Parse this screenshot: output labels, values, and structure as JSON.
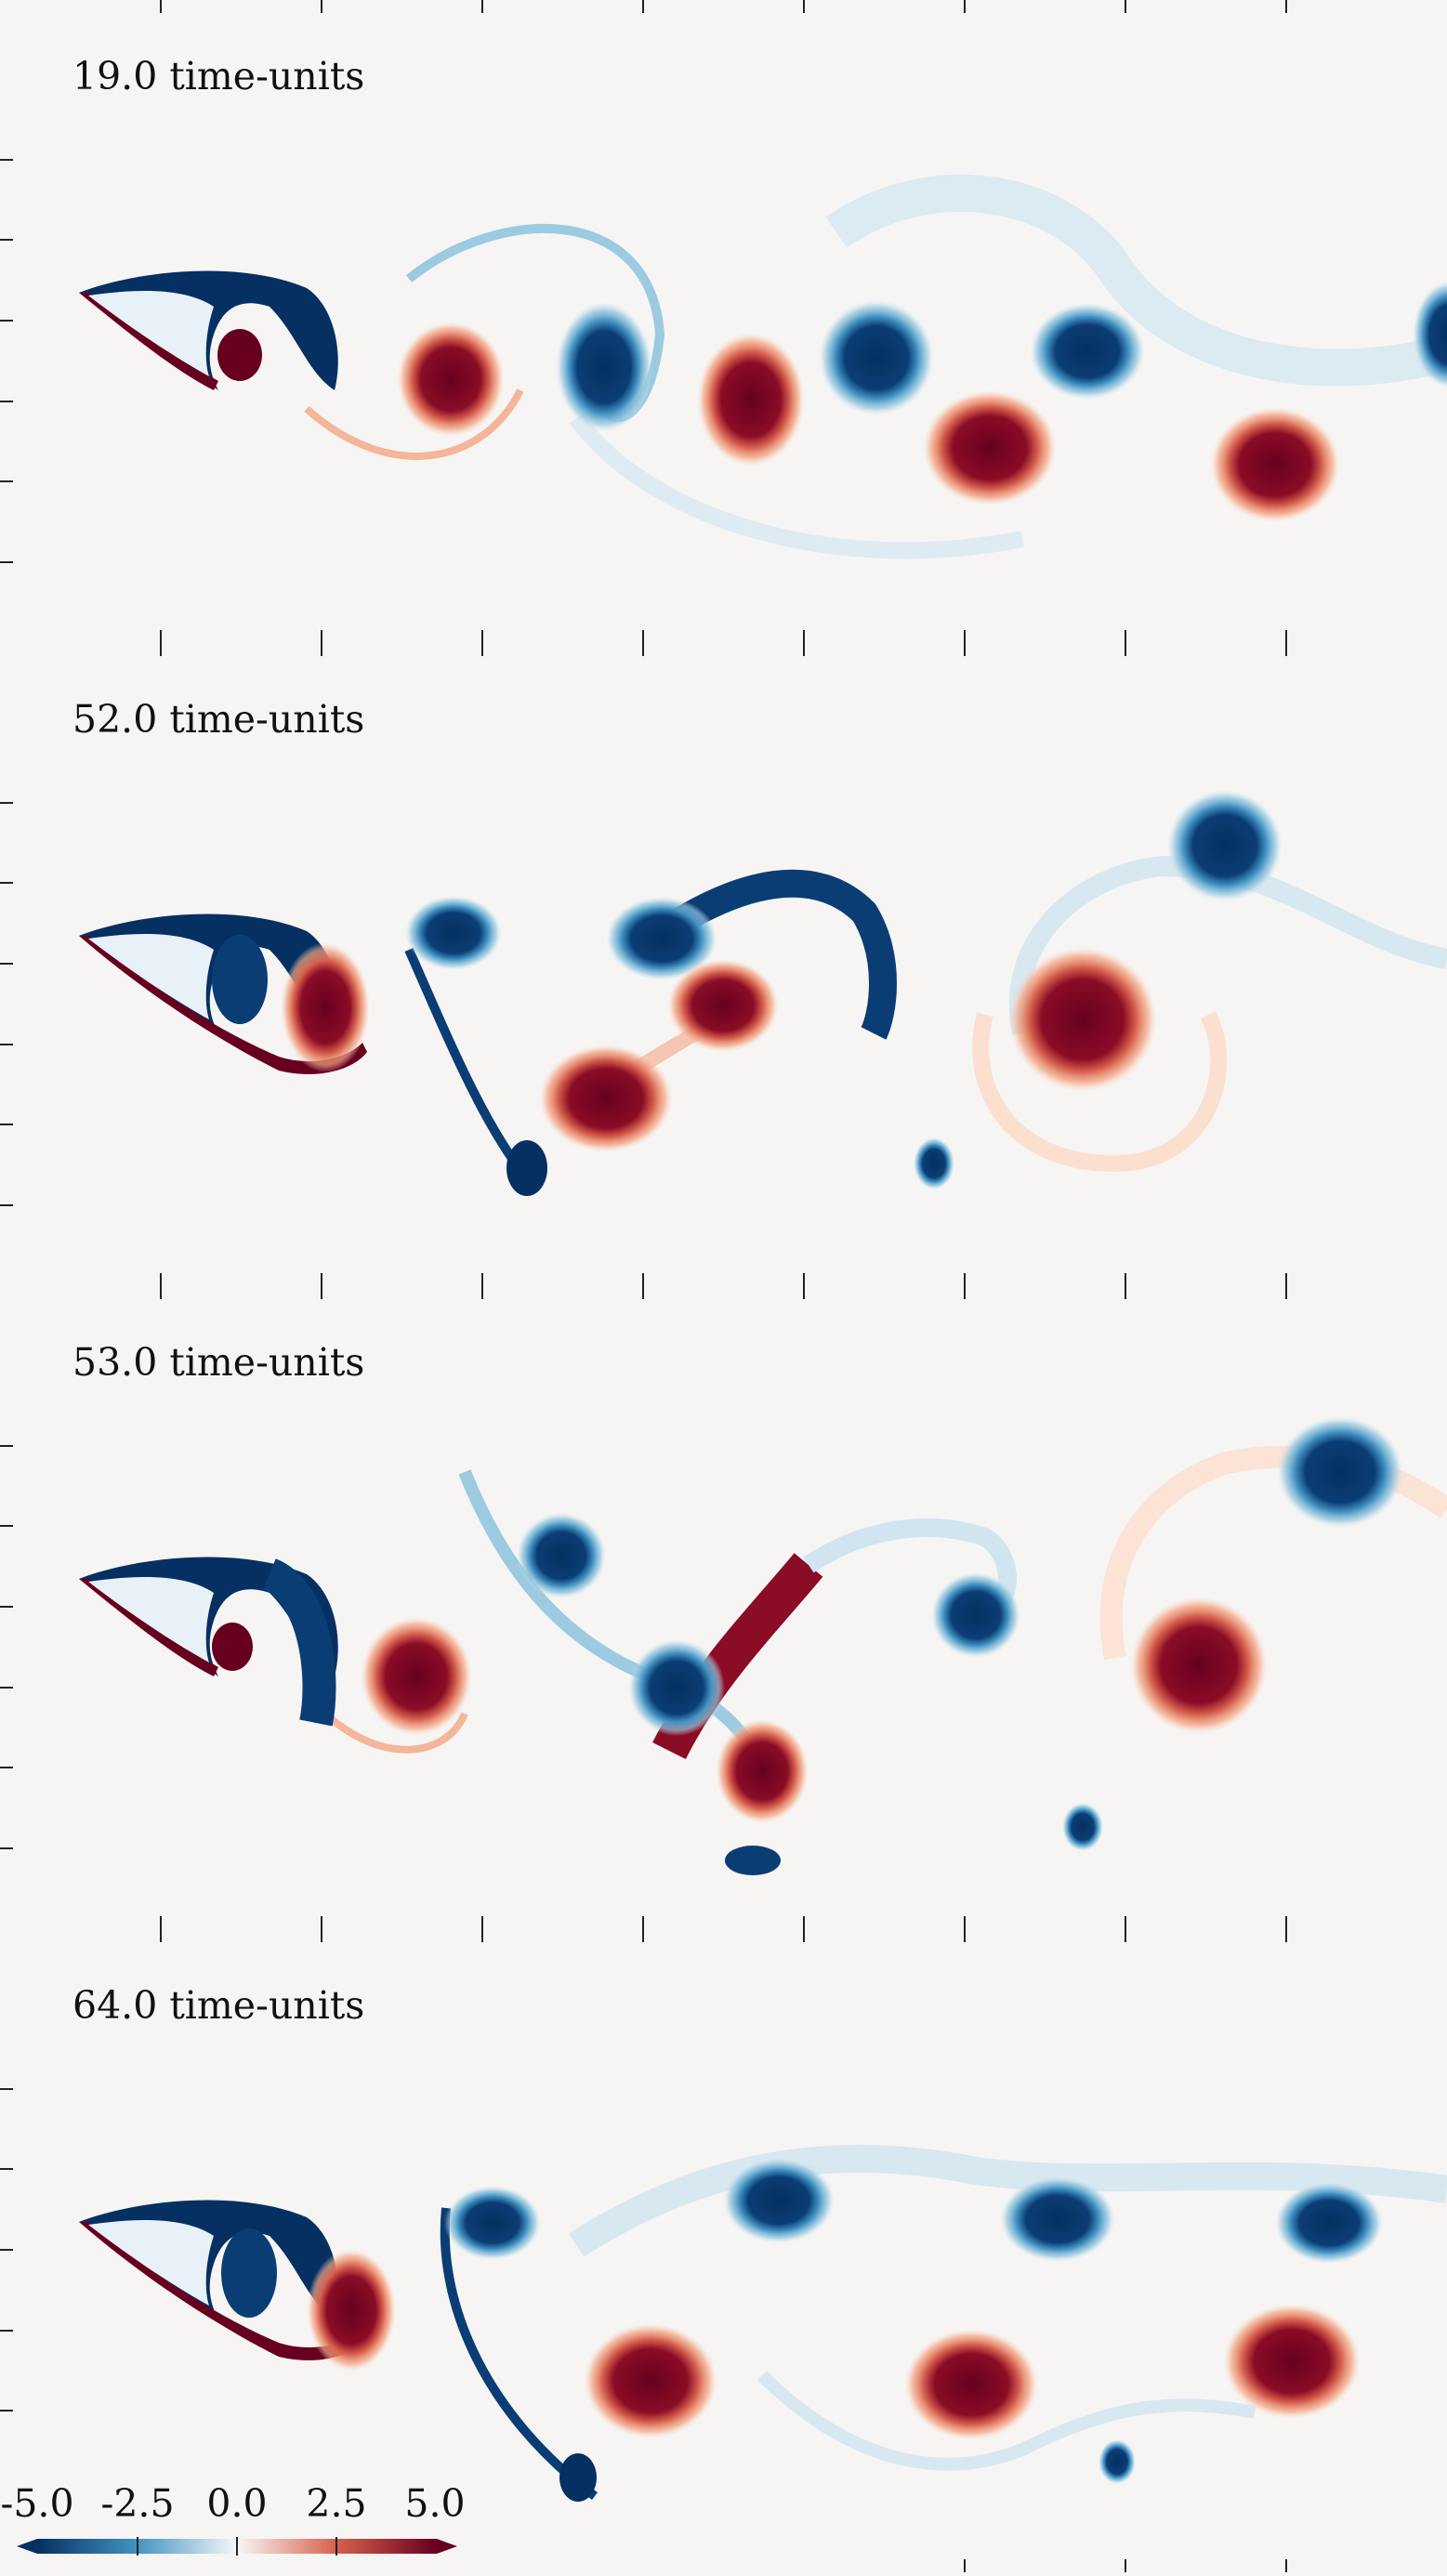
{
  "panels": [
    {
      "label": "19.0 time-units"
    },
    {
      "label": "52.0 time-units"
    },
    {
      "label": "53.0 time-units"
    },
    {
      "label": "64.0 time-units"
    }
  ],
  "colorbar": {
    "ticks": [
      "-5.0",
      "-2.5",
      "0.0",
      "2.5",
      "5.0"
    ],
    "colors": {
      "neg": "#053061",
      "mid": "#f7f7f7",
      "pos": "#67001f"
    }
  }
}
